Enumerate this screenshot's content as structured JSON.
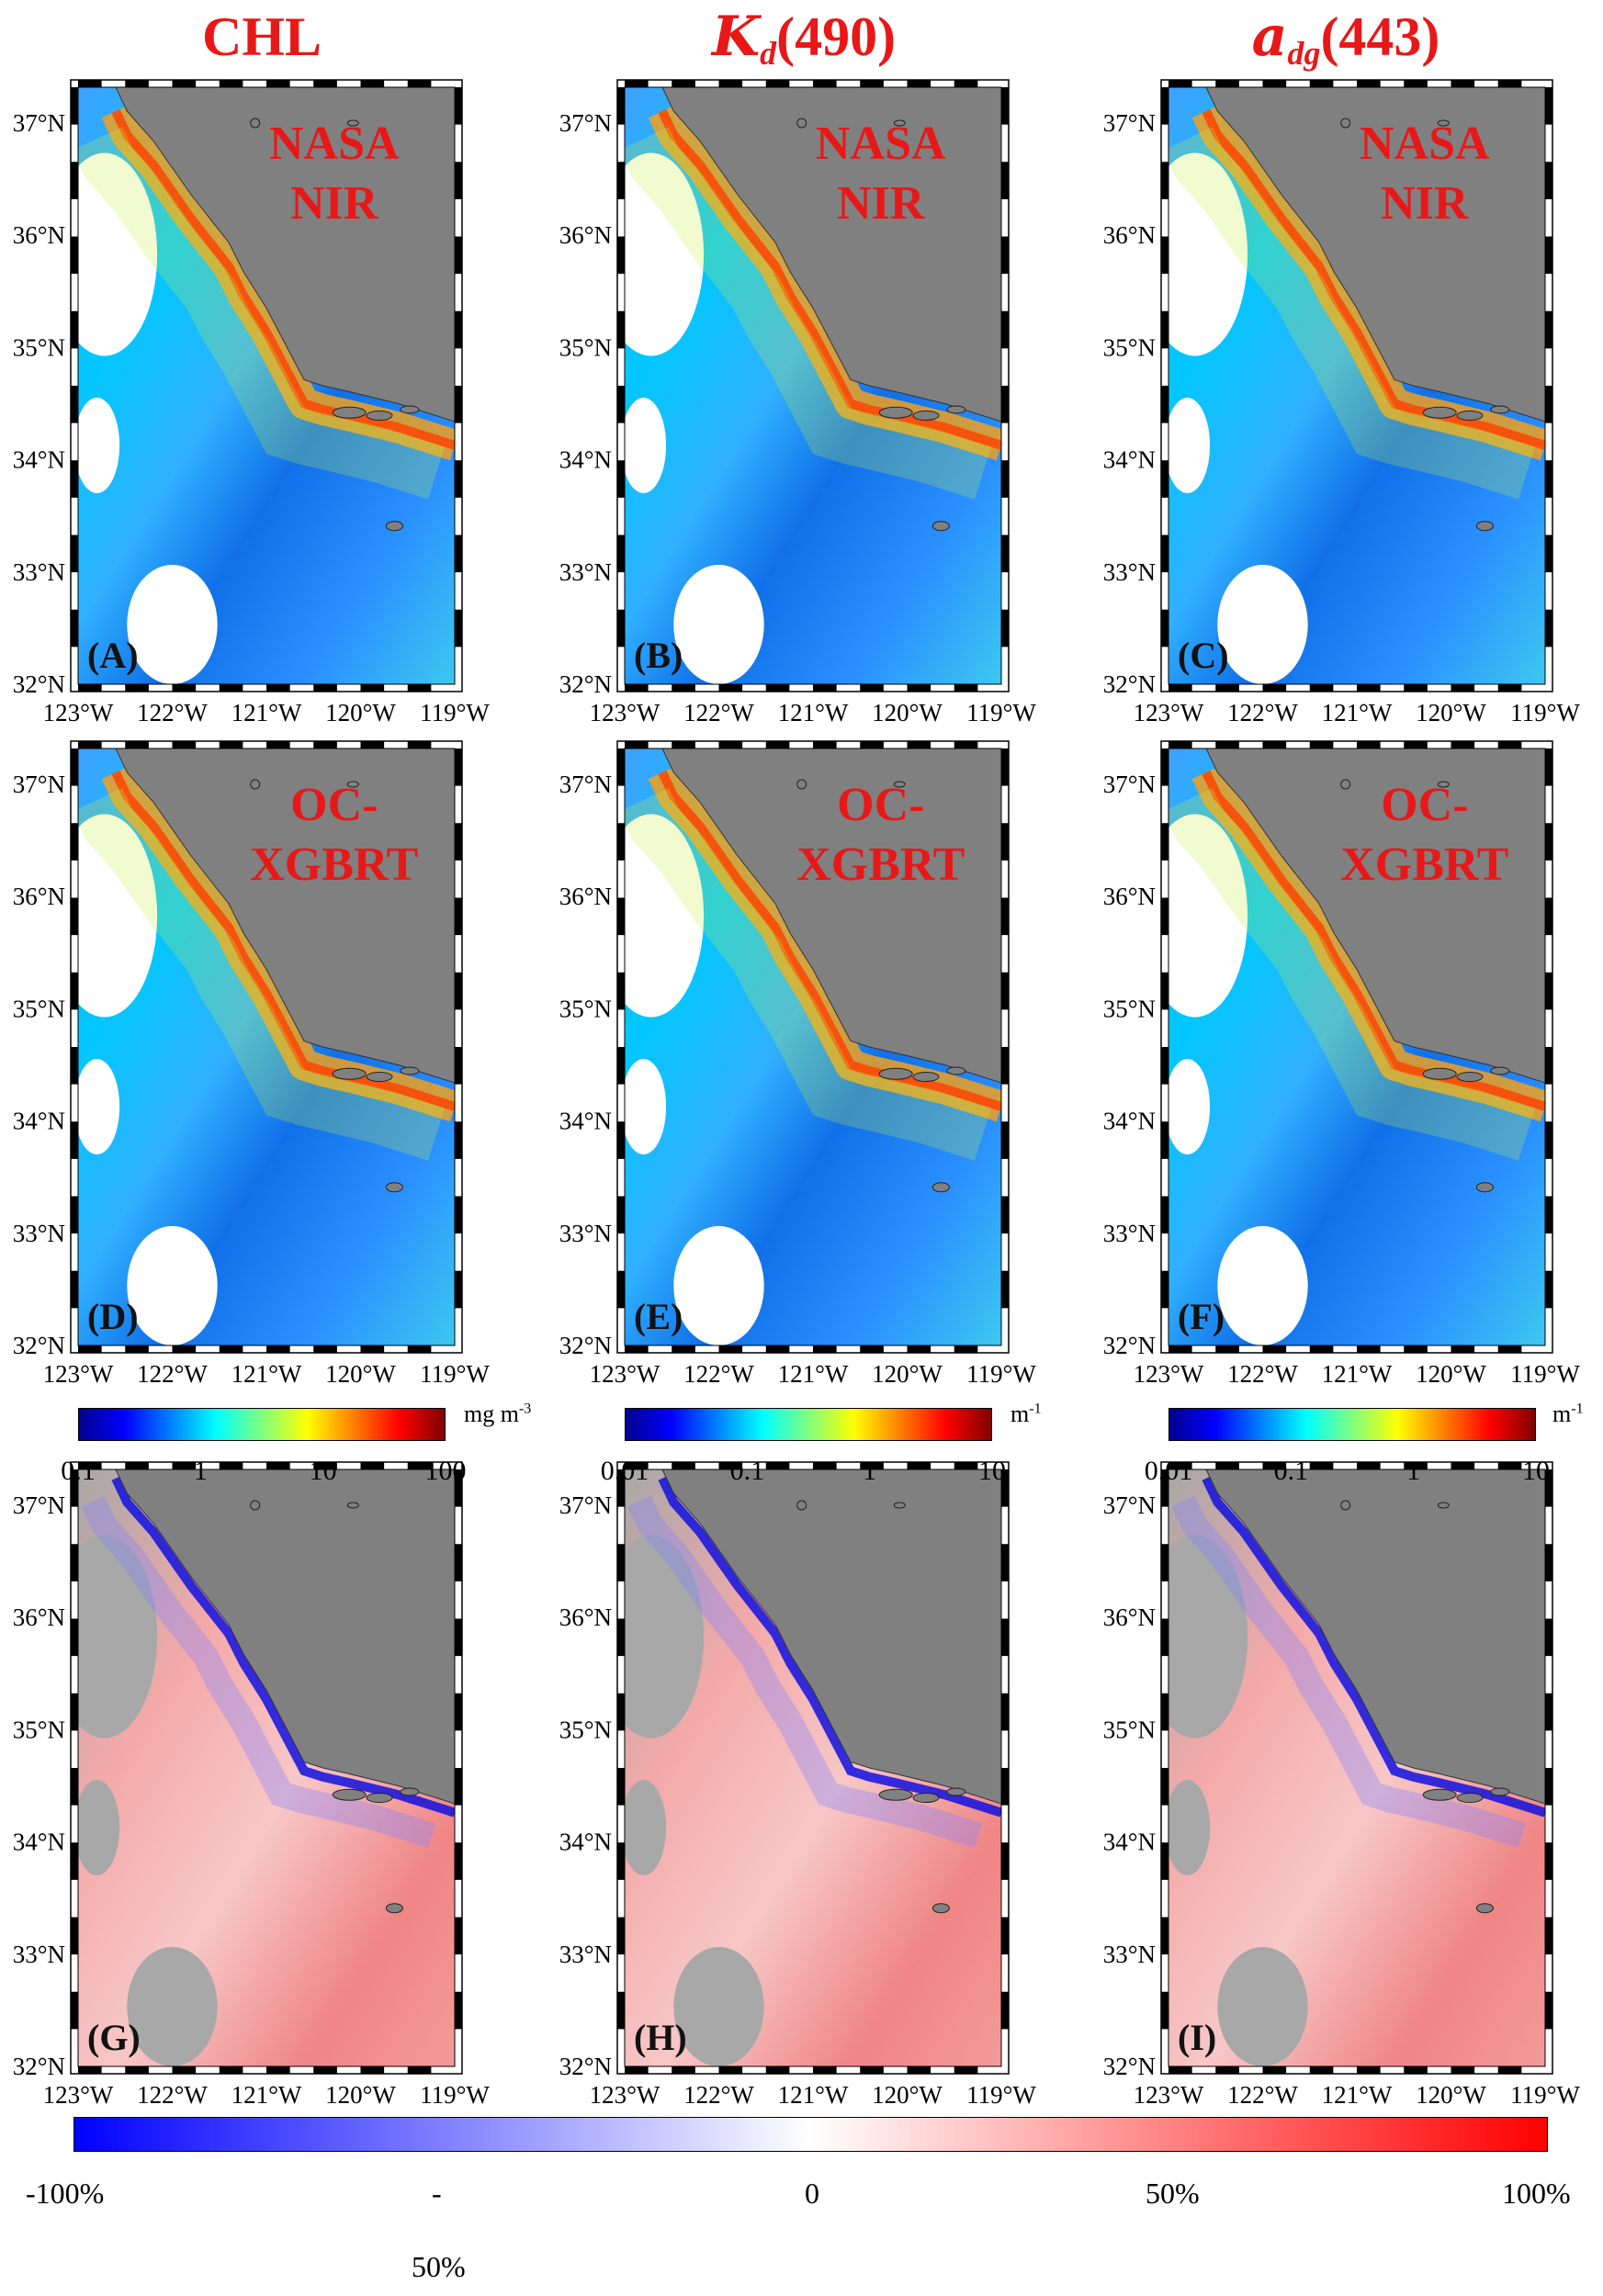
{
  "columns": [
    {
      "id": "chl",
      "title": "CHL",
      "symbol": "",
      "sub": "",
      "arg": ""
    },
    {
      "id": "kd",
      "title": "",
      "symbol": "K",
      "sub": "d",
      "arg": "(490)"
    },
    {
      "id": "adg",
      "title": "",
      "symbol": "a",
      "sub": "dg",
      "arg": "(443)"
    }
  ],
  "rows": [
    {
      "overlay_line1": "NASA",
      "overlay_line2": "NIR",
      "kind": "product"
    },
    {
      "overlay_line1": "OC-",
      "overlay_line2": "XGBRT",
      "kind": "product"
    },
    {
      "overlay_line1": "",
      "overlay_line2": "",
      "kind": "difference"
    }
  ],
  "panel_labels": [
    "(A)",
    "(B)",
    "(C)",
    "(D)",
    "(E)",
    "(F)",
    "(G)",
    "(H)",
    "(I)"
  ],
  "lat_ticks": [
    "37°N",
    "36°N",
    "35°N",
    "34°N",
    "33°N",
    "32°N"
  ],
  "lon_ticks": [
    "123°W",
    "122°W",
    "121°W",
    "120°W",
    "119°W"
  ],
  "colorbars": [
    {
      "ticks": [
        "0.1",
        "1",
        "10",
        "100"
      ],
      "unit": "mg m",
      "unit_sup": "-3"
    },
    {
      "ticks": [
        "0.01",
        "0.1",
        "1",
        "10"
      ],
      "unit": "m",
      "unit_sup": "-1"
    },
    {
      "ticks": [
        "0.01",
        "0.1",
        "1",
        "10"
      ],
      "unit": "m",
      "unit_sup": "-1"
    }
  ],
  "diff_colorbar": {
    "ticks": [
      "-100%",
      "-",
      "0",
      "50%",
      "100%"
    ],
    "second_line": "50%",
    "colors": {
      "neg": "#0000ff",
      "mid": "#ffffff",
      "pos": "#ff0000"
    }
  },
  "colors": {
    "land": "#808080",
    "nodata_diff": "#a8a8a8",
    "title_red": "#e81818"
  },
  "icons": {
    "frame": "checkered-axis-border"
  }
}
